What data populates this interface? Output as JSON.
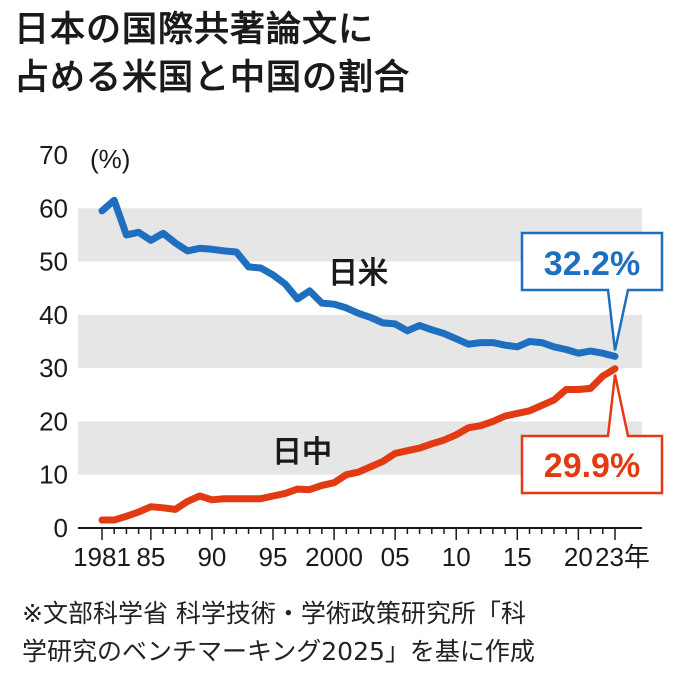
{
  "title": {
    "line1": "日本の国際共著論文に",
    "line2": "占める米国と中国の割合"
  },
  "source": {
    "line1": "※文部科学省 科学技術・学術政策研究所「科",
    "line2": "学研究のベンチマーキング2025」を基に作成"
  },
  "colors": {
    "us": "#1f6fc0",
    "china": "#e23a12",
    "band": "#e6e6e6",
    "text": "#1a1a1a"
  },
  "chart_data": {
    "type": "line",
    "title": "日本の国際共著論文に占める米国と中国の割合",
    "ylabel": "(%)",
    "ylim": [
      0,
      70
    ],
    "yticks": [
      "0",
      "10",
      "20",
      "30",
      "40",
      "50",
      "60",
      "70"
    ],
    "xlim": [
      1981,
      2023
    ],
    "xticks": [
      {
        "x": 1981,
        "label": "1981"
      },
      {
        "x": 1985,
        "label": "85"
      },
      {
        "x": 1990,
        "label": "90"
      },
      {
        "x": 1995,
        "label": "95"
      },
      {
        "x": 2000,
        "label": "2000"
      },
      {
        "x": 2005,
        "label": "05"
      },
      {
        "x": 2010,
        "label": "10"
      },
      {
        "x": 2015,
        "label": "15"
      },
      {
        "x": 2020,
        "label": "20"
      },
      {
        "x": 2023,
        "label": "23年"
      }
    ],
    "x": [
      1981,
      1982,
      1983,
      1984,
      1985,
      1986,
      1987,
      1988,
      1989,
      1990,
      1991,
      1992,
      1993,
      1994,
      1995,
      1996,
      1997,
      1998,
      1999,
      2000,
      2001,
      2002,
      2003,
      2004,
      2005,
      2006,
      2007,
      2008,
      2009,
      2010,
      2011,
      2012,
      2013,
      2014,
      2015,
      2016,
      2017,
      2018,
      2019,
      2020,
      2021,
      2022,
      2023
    ],
    "series": [
      {
        "name": "日米",
        "values": [
          59.5,
          61.5,
          55,
          55.5,
          54,
          55.3,
          53.5,
          52,
          52.5,
          52.3,
          52,
          51.8,
          49,
          48.8,
          47.5,
          45.8,
          43,
          44.5,
          42.2,
          42,
          41.3,
          40.3,
          39.5,
          38.5,
          38.3,
          37,
          38,
          37.2,
          36.5,
          35.5,
          34.5,
          34.8,
          34.8,
          34.3,
          34,
          35,
          34.8,
          34,
          33.5,
          32.8,
          33.2,
          32.8,
          32.2
        ]
      },
      {
        "name": "日中",
        "values": [
          1.5,
          1.5,
          2.2,
          3,
          4,
          3.8,
          3.5,
          5,
          6,
          5.3,
          5.5,
          5.5,
          5.5,
          5.5,
          6,
          6.5,
          7.3,
          7.2,
          8,
          8.5,
          10,
          10.5,
          11.5,
          12.5,
          14,
          14.5,
          15,
          15.8,
          16.5,
          17.5,
          18.8,
          19.2,
          20,
          21,
          21.5,
          22,
          23,
          24,
          26,
          26,
          26.2,
          28.5,
          29.9
        ]
      }
    ],
    "end_labels": {
      "us": "32.2%",
      "china": "29.9%"
    },
    "grid_bands": true
  }
}
